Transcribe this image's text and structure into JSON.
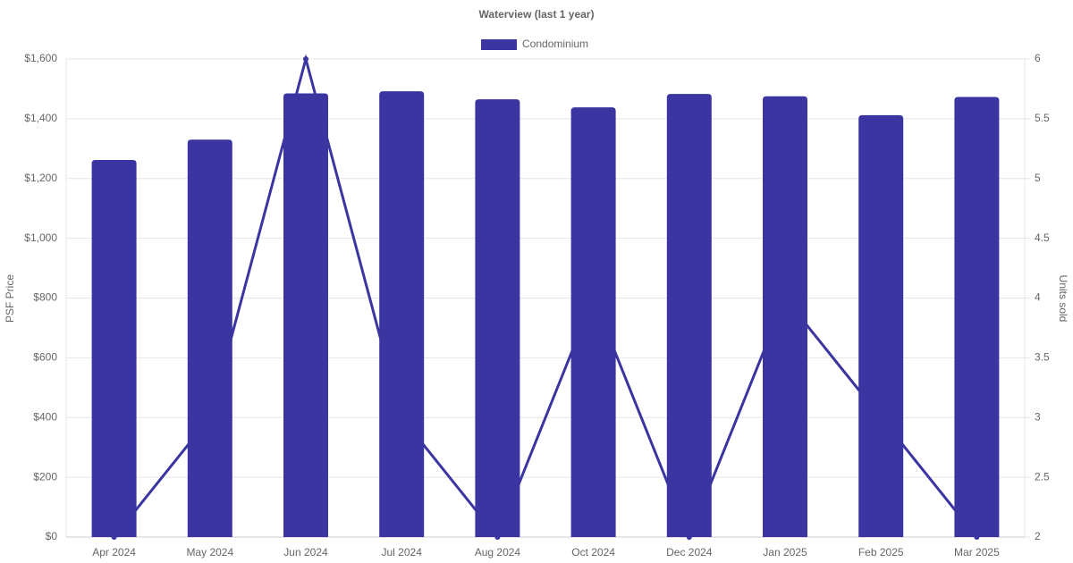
{
  "chart_data": {
    "type": "bar-line",
    "title": "Waterview (last 1 year)",
    "categories": [
      "Apr 2024",
      "May 2024",
      "Jun 2024",
      "Jul 2024",
      "Aug 2024",
      "Oct 2024",
      "Dec 2024",
      "Jan 2025",
      "Feb 2025",
      "Mar 2025"
    ],
    "series": [
      {
        "name": "Condominium",
        "type": "bar",
        "color": "#3a35a0",
        "values": [
          1262,
          1330,
          1485,
          1492,
          1465,
          1438,
          1483,
          1475,
          1412,
          1473
        ]
      },
      {
        "type": "line",
        "axis": "y2",
        "color": "#3a35a0",
        "values": [
          2,
          3,
          6,
          3,
          2,
          4,
          2,
          4,
          3,
          2
        ]
      }
    ],
    "ylabel": "PSF Price",
    "y2label": "Units sold",
    "ylim": [
      0,
      1600
    ],
    "yticks": [
      {
        "value": 0,
        "label": "$0"
      },
      {
        "value": 200,
        "label": "$200"
      },
      {
        "value": 400,
        "label": "$400"
      },
      {
        "value": 600,
        "label": "$600"
      },
      {
        "value": 800,
        "label": "$800"
      },
      {
        "value": 1000,
        "label": "$1,000"
      },
      {
        "value": 1200,
        "label": "$1,200"
      },
      {
        "value": 1400,
        "label": "$1,400"
      },
      {
        "value": 1600,
        "label": "$1,600"
      }
    ],
    "y2lim": [
      2,
      6
    ],
    "y2ticks": [
      2,
      2.5,
      3,
      3.5,
      4,
      4.5,
      5,
      5.5,
      6
    ],
    "grid": true,
    "legend": "top"
  }
}
